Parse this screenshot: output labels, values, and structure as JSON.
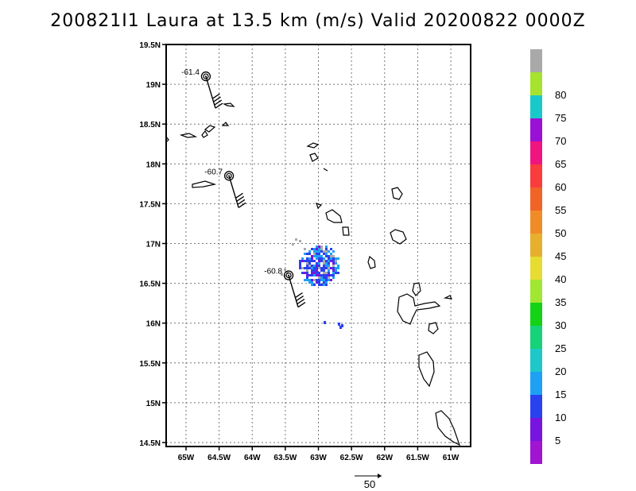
{
  "title": "200821I1 Laura at 13.5 km (m/s) Valid 20200822 0000Z",
  "map": {
    "lon_range": [
      -65.3,
      -60.7
    ],
    "lat_range": [
      14.45,
      19.5
    ],
    "x_ticks": [
      {
        "label": "65W",
        "lon": -65.0
      },
      {
        "label": "64.5W",
        "lon": -64.5
      },
      {
        "label": "64W",
        "lon": -64.0
      },
      {
        "label": "63.5W",
        "lon": -63.5
      },
      {
        "label": "63W",
        "lon": -63.0
      },
      {
        "label": "62.5W",
        "lon": -62.5
      },
      {
        "label": "62W",
        "lon": -62.0
      },
      {
        "label": "61.5W",
        "lon": -61.5
      },
      {
        "label": "61W",
        "lon": -61.0
      }
    ],
    "y_ticks": [
      {
        "label": "19.5N",
        "lat": 19.5
      },
      {
        "label": "19N",
        "lat": 19.0
      },
      {
        "label": "18.5N",
        "lat": 18.5
      },
      {
        "label": "18N",
        "lat": 18.0
      },
      {
        "label": "17.5N",
        "lat": 17.5
      },
      {
        "label": "17N",
        "lat": 17.0
      },
      {
        "label": "16.5N",
        "lat": 16.5
      },
      {
        "label": "16N",
        "lat": 16.0
      },
      {
        "label": "15.5N",
        "lat": 15.5
      },
      {
        "label": "15N",
        "lat": 15.0
      },
      {
        "label": "14.5N",
        "lat": 14.5
      }
    ],
    "grid": "dotted",
    "storm_markers": [
      {
        "label": "-61.4",
        "lon": -64.7,
        "lat": 19.1
      },
      {
        "label": "-60.7",
        "lon": -64.35,
        "lat": 17.85
      },
      {
        "label": "-60.8",
        "lon": -63.45,
        "lat": 16.6
      }
    ],
    "reference_vector": {
      "label": "50"
    }
  },
  "colorbar": {
    "levels": [
      {
        "label": "",
        "color": "#a9a9a9"
      },
      {
        "label": "80",
        "color": "#a6e22e"
      },
      {
        "label": "75",
        "color": "#19c9c9"
      },
      {
        "label": "70",
        "color": "#9a10d6"
      },
      {
        "label": "65",
        "color": "#f0147f"
      },
      {
        "label": "60",
        "color": "#fa3c3c"
      },
      {
        "label": "55",
        "color": "#f06428"
      },
      {
        "label": "50",
        "color": "#f08c28"
      },
      {
        "label": "45",
        "color": "#e6af2d"
      },
      {
        "label": "40",
        "color": "#e6dc32"
      },
      {
        "label": "35",
        "color": "#a0e632"
      },
      {
        "label": "30",
        "color": "#14d214"
      },
      {
        "label": "25",
        "color": "#18d27a"
      },
      {
        "label": "20",
        "color": "#1ec8c8"
      },
      {
        "label": "15",
        "color": "#1ea0f5"
      },
      {
        "label": "10",
        "color": "#2a41f0"
      },
      {
        "label": "5",
        "color": "#7814e0"
      },
      {
        "label": "",
        "color": "#a014d2"
      }
    ]
  }
}
